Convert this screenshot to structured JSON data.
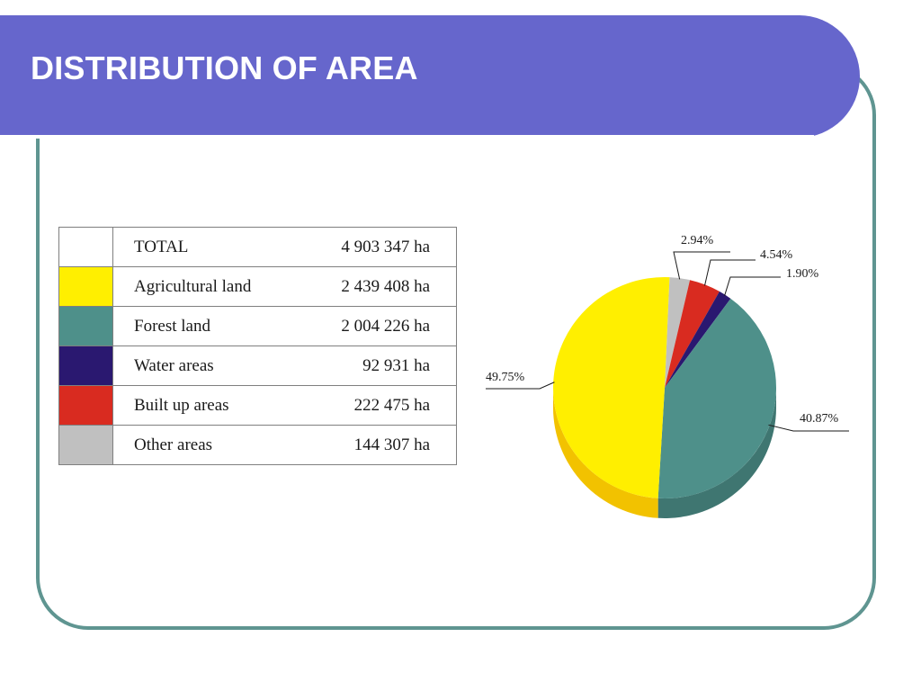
{
  "slide": {
    "title": "DISTRIBUTION OF AREA"
  },
  "table": {
    "total": {
      "label": "TOTAL",
      "value": "4 903 347 ha"
    },
    "rows": [
      {
        "label": "Agricultural land",
        "value": "2 439 408 ha",
        "color": "#ffef00"
      },
      {
        "label": "Forest land",
        "value": "2 004 226 ha",
        "color": "#4e908a"
      },
      {
        "label": "Water areas",
        "value": "92 931 ha",
        "color": "#2a1870"
      },
      {
        "label": "Built up areas",
        "value": "222 475 ha",
        "color": "#d92b20"
      },
      {
        "label": "Other areas",
        "value": "144 307 ha",
        "color": "#c0c0c0"
      }
    ]
  },
  "chart_data": {
    "type": "pie",
    "categories": [
      "Agricultural land",
      "Forest land",
      "Water areas",
      "Built up areas",
      "Other areas"
    ],
    "values": [
      49.75,
      40.87,
      1.9,
      4.54,
      2.94
    ],
    "labels": [
      "49.75%",
      "40.87%",
      "1.90%",
      "4.54%",
      "2.94%"
    ],
    "colors": [
      "#ffef00",
      "#4e908a",
      "#2a1870",
      "#d92b20",
      "#c0c0c0"
    ],
    "side_colors": [
      "#f2c200",
      "#3f7671",
      "#1d1050",
      "#a81e17",
      "#9a9a9a"
    ],
    "three_d": true
  }
}
